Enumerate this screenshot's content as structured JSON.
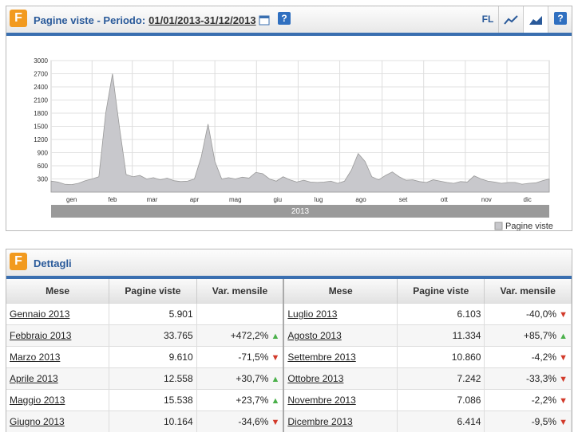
{
  "logo": "F",
  "help": "?",
  "header": {
    "title": "Pagine viste - Periodo:",
    "period": "01/01/2013-31/12/2013",
    "fl": "FL"
  },
  "chart_data": {
    "type": "area",
    "x": [
      0,
      5,
      10,
      15,
      20,
      25,
      30,
      35,
      40,
      45,
      50,
      55,
      60,
      65,
      70,
      75,
      80,
      85,
      90,
      95,
      100,
      105,
      110,
      115,
      120,
      125,
      130,
      135,
      140,
      145,
      150,
      155,
      160,
      165,
      170,
      175,
      180,
      185,
      190,
      195,
      200,
      205,
      210,
      215,
      220,
      225,
      230,
      235,
      240,
      245,
      250,
      255,
      260,
      265,
      270,
      275,
      280,
      285,
      290,
      295,
      300,
      305,
      310,
      315,
      320,
      325,
      330,
      335,
      340,
      345,
      350,
      355,
      360,
      365
    ],
    "series": [
      {
        "name": "Pagine viste",
        "color": "#c8c8cc",
        "values": [
          250,
          230,
          180,
          170,
          200,
          260,
          300,
          350,
          1800,
          2700,
          1500,
          400,
          350,
          380,
          300,
          330,
          280,
          320,
          260,
          240,
          250,
          300,
          800,
          1550,
          700,
          300,
          330,
          300,
          340,
          320,
          450,
          420,
          300,
          250,
          350,
          280,
          230,
          270,
          230,
          220,
          230,
          250,
          200,
          250,
          500,
          880,
          700,
          350,
          280,
          380,
          460,
          350,
          270,
          280,
          240,
          220,
          280,
          250,
          220,
          200,
          240,
          230,
          370,
          300,
          250,
          230,
          200,
          220,
          220,
          180,
          200,
          210,
          260,
          300
        ]
      }
    ],
    "xlim": [
      0,
      365
    ],
    "ylim": [
      0,
      3000
    ],
    "yticks": [
      300,
      600,
      900,
      1200,
      1500,
      1800,
      2100,
      2400,
      2700,
      3000
    ],
    "xticks": [
      {
        "value": 15,
        "label": "gen"
      },
      {
        "value": 45,
        "label": "feb"
      },
      {
        "value": 74,
        "label": "mar"
      },
      {
        "value": 105,
        "label": "apr"
      },
      {
        "value": 135,
        "label": "mag"
      },
      {
        "value": 166,
        "label": "giu"
      },
      {
        "value": 196,
        "label": "lug"
      },
      {
        "value": 227,
        "label": "ago"
      },
      {
        "value": 258,
        "label": "set"
      },
      {
        "value": 288,
        "label": "ott"
      },
      {
        "value": 319,
        "label": "nov"
      },
      {
        "value": 349,
        "label": "dic"
      }
    ],
    "xlabel": "2013",
    "grid": true
  },
  "table": {
    "title": "Dettagli",
    "headers": [
      "Mese",
      "Pagine viste",
      "Var. mensile",
      "Mese",
      "Pagine viste",
      "Var. mensile"
    ],
    "rows": [
      [
        "Gennaio 2013",
        "5.901",
        null,
        "Luglio 2013",
        "6.103",
        "-40,0%"
      ],
      [
        "Febbraio 2013",
        "33.765",
        "+472,2%",
        "Agosto 2013",
        "11.334",
        "+85,7%"
      ],
      [
        "Marzo 2013",
        "9.610",
        "-71,5%",
        "Settembre 2013",
        "10.860",
        "-4,2%"
      ],
      [
        "Aprile 2013",
        "12.558",
        "+30,7%",
        "Ottobre 2013",
        "7.242",
        "-33,3%"
      ],
      [
        "Maggio 2013",
        "15.538",
        "+23,7%",
        "Novembre 2013",
        "7.086",
        "-2,2%"
      ],
      [
        "Giugno 2013",
        "10.164",
        "-34,6%",
        "Dicembre 2013",
        "6.414",
        "-9,5%"
      ]
    ]
  }
}
